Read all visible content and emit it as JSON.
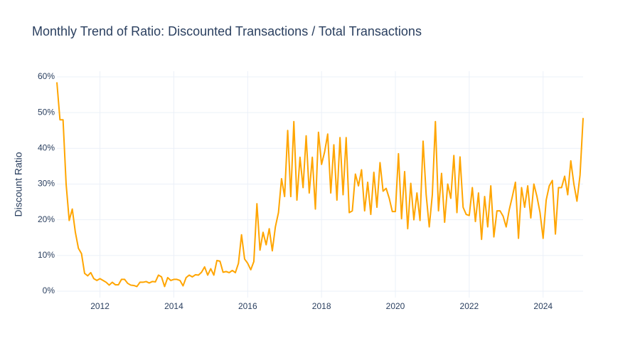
{
  "chart_data": {
    "type": "line",
    "title": "Monthly Trend of Ratio: Discounted Transactions / Total Transactions",
    "y_label": "Discount Ratio",
    "x": [
      "2010-11",
      "2010-12",
      "2011-01",
      "2011-02",
      "2011-03",
      "2011-04",
      "2011-05",
      "2011-06",
      "2011-07",
      "2011-08",
      "2011-09",
      "2011-10",
      "2011-11",
      "2011-12",
      "2012-01",
      "2012-02",
      "2012-03",
      "2012-04",
      "2012-05",
      "2012-06",
      "2012-07",
      "2012-08",
      "2012-09",
      "2012-10",
      "2012-11",
      "2012-12",
      "2013-01",
      "2013-02",
      "2013-03",
      "2013-04",
      "2013-05",
      "2013-06",
      "2013-07",
      "2013-08",
      "2013-09",
      "2013-10",
      "2013-11",
      "2013-12",
      "2014-01",
      "2014-02",
      "2014-03",
      "2014-04",
      "2014-05",
      "2014-06",
      "2014-07",
      "2014-08",
      "2014-09",
      "2014-10",
      "2014-11",
      "2014-12",
      "2015-01",
      "2015-02",
      "2015-03",
      "2015-04",
      "2015-05",
      "2015-06",
      "2015-07",
      "2015-08",
      "2015-09",
      "2015-10",
      "2015-11",
      "2015-12",
      "2016-01",
      "2016-02",
      "2016-03",
      "2016-04",
      "2016-05",
      "2016-06",
      "2016-07",
      "2016-08",
      "2016-09",
      "2016-10",
      "2016-11",
      "2016-12",
      "2017-01",
      "2017-02",
      "2017-03",
      "2017-04",
      "2017-05",
      "2017-06",
      "2017-07",
      "2017-08",
      "2017-09",
      "2017-10",
      "2017-11",
      "2017-12",
      "2018-01",
      "2018-02",
      "2018-03",
      "2018-04",
      "2018-05",
      "2018-06",
      "2018-07",
      "2018-08",
      "2018-09",
      "2018-10",
      "2018-11",
      "2018-12",
      "2019-01",
      "2019-02",
      "2019-03",
      "2019-04",
      "2019-05",
      "2019-06",
      "2019-07",
      "2019-08",
      "2019-09",
      "2019-10",
      "2019-11",
      "2019-12",
      "2020-01",
      "2020-02",
      "2020-03",
      "2020-04",
      "2020-05",
      "2020-06",
      "2020-07",
      "2020-08",
      "2020-09",
      "2020-10",
      "2020-11",
      "2020-12",
      "2021-01",
      "2021-02",
      "2021-03",
      "2021-04",
      "2021-05",
      "2021-06",
      "2021-07",
      "2021-08",
      "2021-09",
      "2021-10",
      "2021-11",
      "2021-12",
      "2022-01",
      "2022-02",
      "2022-03",
      "2022-04",
      "2022-05",
      "2022-06",
      "2022-07",
      "2022-08",
      "2022-09",
      "2022-10",
      "2022-11",
      "2022-12",
      "2023-01",
      "2023-02",
      "2023-03",
      "2023-04",
      "2023-05",
      "2023-06",
      "2023-07",
      "2023-08",
      "2023-09",
      "2023-10",
      "2023-11",
      "2023-12",
      "2024-01",
      "2024-02",
      "2024-03",
      "2024-04",
      "2024-05",
      "2024-06",
      "2024-07",
      "2024-08",
      "2024-09",
      "2024-10",
      "2024-11",
      "2024-12",
      "2025-01",
      "2025-02"
    ],
    "series": [
      {
        "color": "#ffa500",
        "values": [
          58.5,
          48,
          48,
          30,
          19.8,
          23,
          16.5,
          12,
          10.5,
          5,
          4.3,
          5.2,
          3.5,
          3,
          3.5,
          3,
          2.5,
          1.7,
          2.5,
          1.8,
          1.8,
          3.3,
          3.3,
          2.2,
          1.7,
          1.6,
          1.3,
          2.5,
          2.5,
          2.7,
          2.3,
          2.7,
          2.6,
          4.5,
          4,
          1.3,
          3.8,
          3,
          3.3,
          3.3,
          3,
          1.5,
          3.8,
          4.5,
          4,
          4.6,
          4.5,
          5.3,
          6.8,
          4.5,
          6.3,
          4.5,
          8.6,
          8.4,
          5.3,
          5.5,
          5.2,
          5.8,
          5.2,
          7.8,
          15.8,
          9,
          7.8,
          6,
          8.3,
          24.5,
          11.5,
          16.5,
          13,
          17.5,
          11.3,
          18,
          22,
          31.5,
          26.5,
          45,
          26.5,
          47.5,
          25.5,
          37.5,
          29,
          43.5,
          27.5,
          37.5,
          23,
          44.5,
          35.5,
          39,
          44,
          27.5,
          41,
          25.5,
          43,
          27,
          43,
          22,
          22.5,
          32.8,
          29.5,
          34,
          22.5,
          30.5,
          21.5,
          33.3,
          23.5,
          36,
          28,
          28.8,
          26,
          22.3,
          22.3,
          38.5,
          20.3,
          33.5,
          17.5,
          30.2,
          20,
          27.5,
          19.8,
          42,
          27,
          18,
          27,
          47.5,
          22.5,
          33,
          19.3,
          30,
          26,
          38,
          22,
          37.6,
          23.5,
          21.5,
          21.2,
          29,
          19.5,
          27.5,
          14.5,
          26.5,
          18,
          29.5,
          15.2,
          22.5,
          22.5,
          21,
          18,
          22.8,
          26.5,
          30.5,
          14.8,
          29,
          23.5,
          29.5,
          20.5,
          30,
          26.5,
          22,
          14.8,
          25.5,
          29.5,
          31,
          16,
          29,
          29,
          32.2,
          27,
          36.5,
          30,
          25.2,
          32.5,
          48.5
        ]
      }
    ],
    "xlim": [
      "2010-11",
      "2025-02"
    ],
    "xticks": [
      2012,
      2014,
      2016,
      2018,
      2020,
      2022,
      2024
    ],
    "ylim": [
      -1.8,
      61.6
    ],
    "yticks": [
      {
        "value": 0,
        "label": "0%"
      },
      {
        "value": 10,
        "label": "10%"
      },
      {
        "value": 20,
        "label": "20%"
      },
      {
        "value": 30,
        "label": "30%"
      },
      {
        "value": 40,
        "label": "40%"
      },
      {
        "value": 50,
        "label": "50%"
      },
      {
        "value": 60,
        "label": "60%"
      }
    ],
    "grid": true
  }
}
